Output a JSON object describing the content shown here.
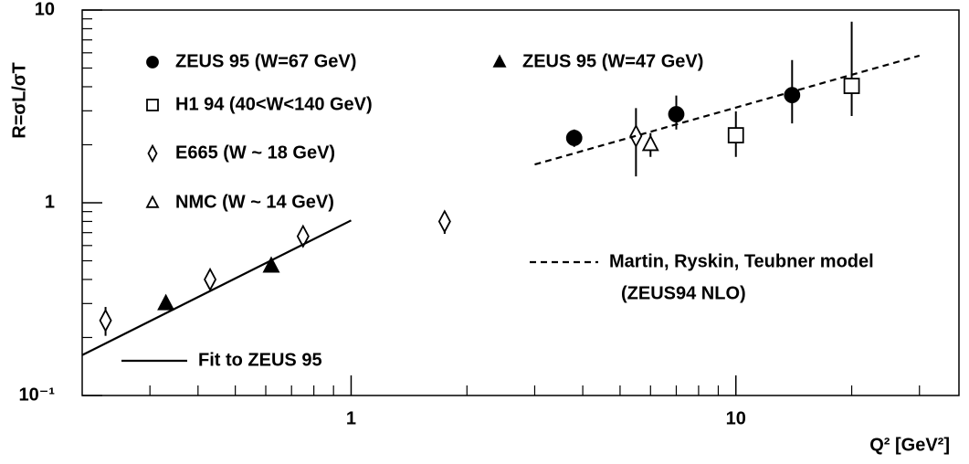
{
  "chart_data": {
    "type": "scatter",
    "xlabel": "Q² [GeV²]",
    "ylabel": "R=σL/σT",
    "xlog": true,
    "ylog": true,
    "xlim": [
      0.2,
      38
    ],
    "ylim": [
      0.1,
      10
    ],
    "xticks": [
      1,
      10
    ],
    "xminorticks": [
      0.3,
      0.4,
      0.5,
      0.6,
      0.7,
      0.8,
      0.9,
      2,
      3,
      4,
      5,
      6,
      7,
      8,
      9,
      20,
      30
    ],
    "yticks": [
      {
        "value": 0.1,
        "label": "10⁻¹"
      },
      1,
      10
    ],
    "yminorticks": [
      0.2,
      0.3,
      0.4,
      0.5,
      0.6,
      0.7,
      0.8,
      0.9,
      2,
      3,
      4,
      5,
      6,
      7,
      8,
      9
    ],
    "series": [
      {
        "name": "ZEUS 95 (W=67 GeV)",
        "marker": "circle",
        "filled": true,
        "color": "#000000",
        "x": [
          3.8,
          7,
          14
        ],
        "values": [
          2.17,
          2.88,
          3.62
        ],
        "yerr_low": [
          1.95,
          2.4,
          2.58
        ],
        "yerr_high": [
          2.4,
          3.6,
          5.5
        ]
      },
      {
        "name": "ZEUS 95 (W=47 GeV)",
        "marker": "triangle",
        "filled": true,
        "color": "#000000",
        "x": [
          0.33,
          0.62
        ],
        "values": [
          0.3,
          0.47
        ],
        "yerr_low": [
          0.28,
          0.44
        ],
        "yerr_high": [
          0.32,
          0.5
        ]
      },
      {
        "name": "H1 94 (40<W<140 GeV)",
        "marker": "square",
        "filled": false,
        "color": "#000000",
        "x": [
          10,
          20
        ],
        "values": [
          2.24,
          4.04
        ],
        "yerr_low": [
          1.73,
          2.82
        ],
        "yerr_high": [
          2.98,
          8.7
        ]
      },
      {
        "name": "E665 (W ~ 18 GeV)",
        "marker": "diamond",
        "filled": false,
        "color": "#000000",
        "x": [
          0.23,
          0.43,
          0.75,
          1.75,
          5.5
        ],
        "values": [
          0.245,
          0.4,
          0.67,
          0.8,
          2.22
        ],
        "yerr_low": [
          0.204,
          0.38,
          0.63,
          0.69,
          1.37
        ],
        "yerr_high": [
          0.288,
          0.42,
          0.71,
          0.9,
          3.1
        ]
      },
      {
        "name": "NMC (W ~ 14 GeV)",
        "marker": "triangle",
        "filled": false,
        "color": "#000000",
        "x": [
          6
        ],
        "values": [
          2.01
        ],
        "yerr_low": [
          1.73
        ],
        "yerr_high": [
          2.3
        ]
      }
    ],
    "lines": [
      {
        "name": "Fit to ZEUS 95",
        "dash": false,
        "x": [
          0.2,
          1
        ],
        "values": [
          0.162,
          0.81
        ]
      },
      {
        "name": "Martin, Ryskin, Teubner model",
        "dash": true,
        "x": [
          3,
          30
        ],
        "values": [
          1.58,
          5.8
        ]
      }
    ],
    "annotations": [
      "(ZEUS94 NLO)"
    ]
  }
}
